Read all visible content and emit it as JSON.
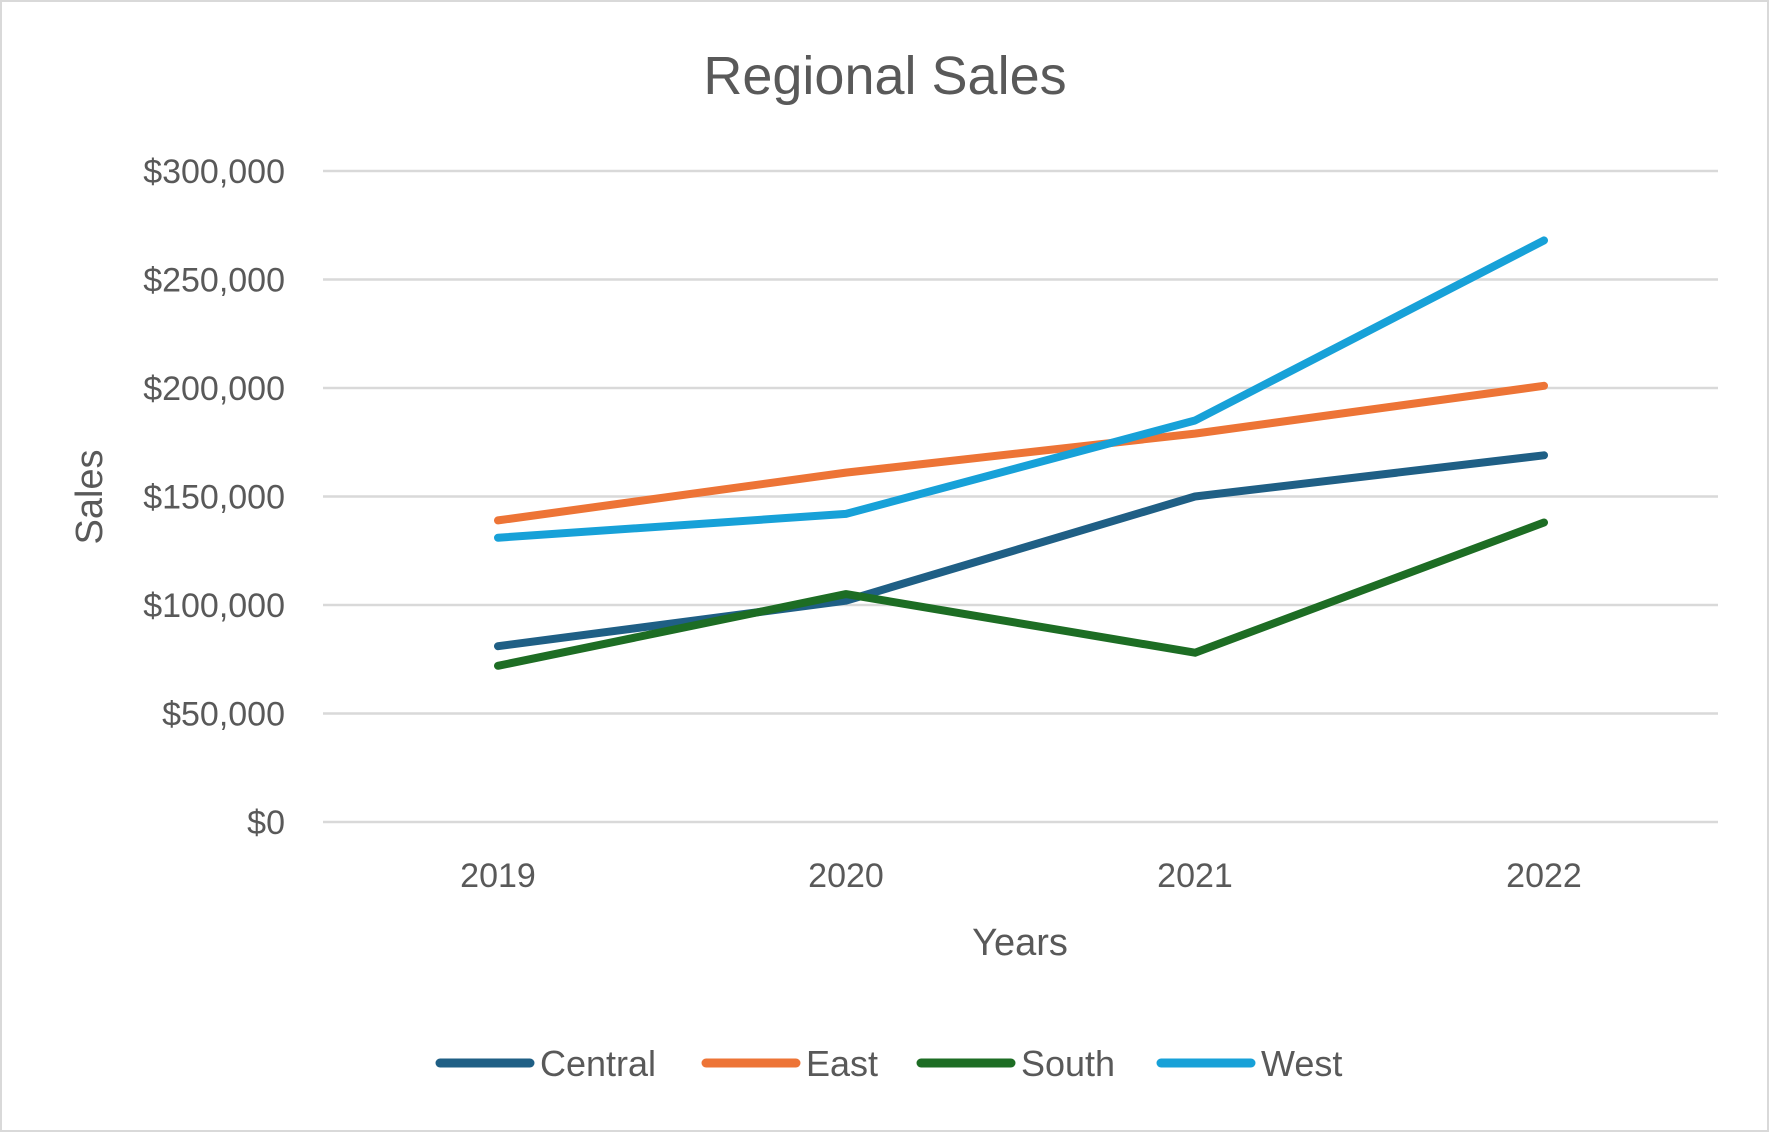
{
  "chart_data": {
    "type": "line",
    "title": "Regional Sales",
    "xlabel": "Years",
    "ylabel": "Sales",
    "x": [
      "2019",
      "2020",
      "2021",
      "2022"
    ],
    "ylim": [
      0,
      300000
    ],
    "yticks": [
      0,
      50000,
      100000,
      150000,
      200000,
      250000,
      300000
    ],
    "ytick_labels": [
      "$0",
      "$50,000",
      "$100,000",
      "$150,000",
      "$200,000",
      "$250,000",
      "$300,000"
    ],
    "grid": true,
    "legend_position": "bottom",
    "series": [
      {
        "name": "Central",
        "color": "#1f5f85",
        "values": [
          81000,
          102000,
          150000,
          169000
        ]
      },
      {
        "name": "East",
        "color": "#ed7436",
        "values": [
          139000,
          161000,
          179000,
          201000
        ]
      },
      {
        "name": "South",
        "color": "#1d6d24",
        "values": [
          72000,
          105000,
          78000,
          138000
        ]
      },
      {
        "name": "West",
        "color": "#17a1d8",
        "values": [
          131000,
          142000,
          185000,
          268000
        ]
      }
    ]
  }
}
